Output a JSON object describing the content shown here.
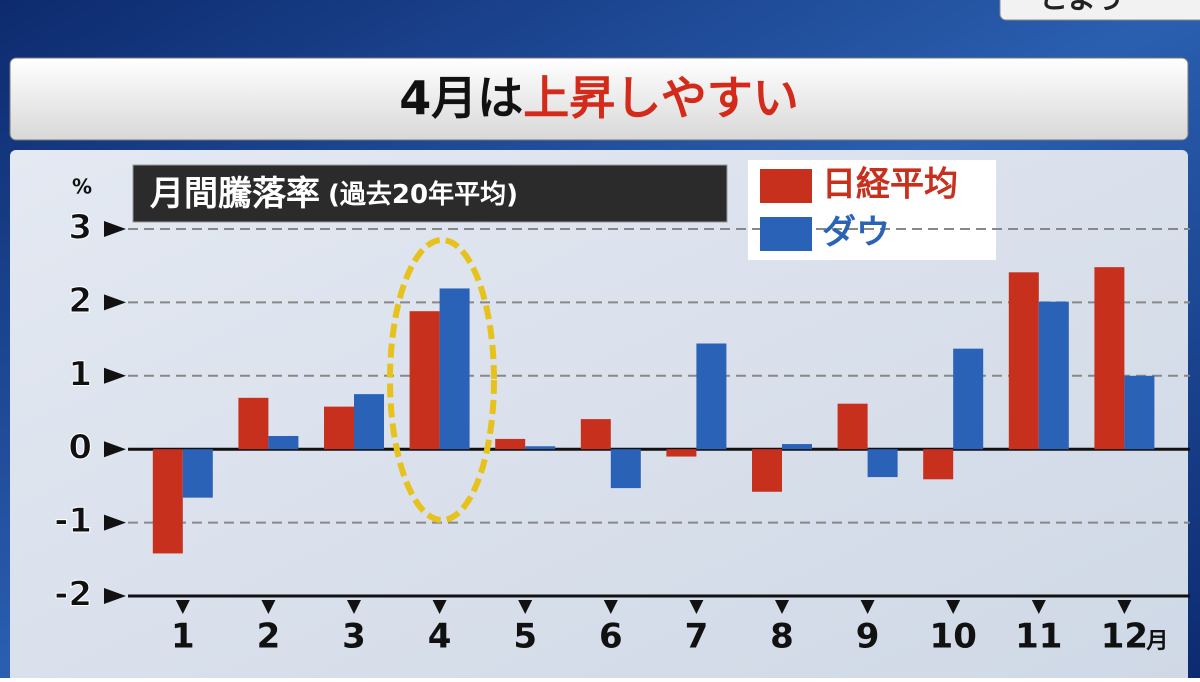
{
  "banner": {
    "text": "4月は",
    "highlight": "上昇しやすい"
  },
  "corner_text": "こよう",
  "chart_data": {
    "type": "bar",
    "title": "月間騰落率",
    "subtitle": "(過去20年平均)",
    "y_label": "%",
    "x_unit": "月",
    "categories": [
      "1",
      "2",
      "3",
      "4",
      "5",
      "6",
      "7",
      "8",
      "9",
      "10",
      "11",
      "12"
    ],
    "series": [
      {
        "name": "日経平均",
        "color": "#c8301e",
        "values": [
          -1.42,
          0.7,
          0.58,
          1.88,
          0.14,
          0.41,
          -0.1,
          -0.58,
          0.62,
          -0.41,
          2.41,
          2.48
        ]
      },
      {
        "name": "ダウ",
        "color": "#2a62b8",
        "values": [
          -0.66,
          0.18,
          0.75,
          2.19,
          0.04,
          -0.53,
          1.44,
          0.07,
          -0.38,
          1.37,
          2.01,
          1.0
        ]
      }
    ],
    "ylim": [
      -2,
      3
    ],
    "yticks": [
      -2,
      -1,
      0,
      1,
      2,
      3
    ],
    "grid": true
  }
}
